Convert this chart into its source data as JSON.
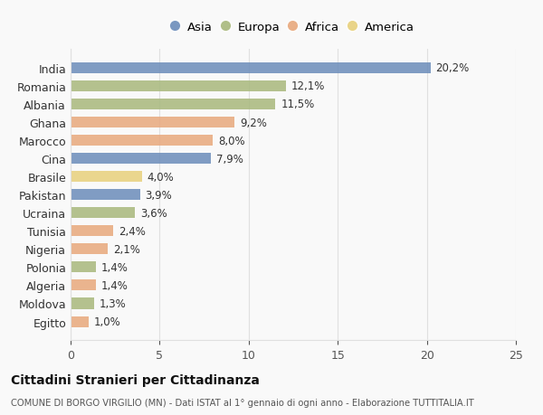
{
  "countries": [
    "India",
    "Romania",
    "Albania",
    "Ghana",
    "Marocco",
    "Cina",
    "Brasile",
    "Pakistan",
    "Ucraina",
    "Tunisia",
    "Nigeria",
    "Polonia",
    "Algeria",
    "Moldova",
    "Egitto"
  ],
  "values": [
    20.2,
    12.1,
    11.5,
    9.2,
    8.0,
    7.9,
    4.0,
    3.9,
    3.6,
    2.4,
    2.1,
    1.4,
    1.4,
    1.3,
    1.0
  ],
  "labels": [
    "20,2%",
    "12,1%",
    "11,5%",
    "9,2%",
    "8,0%",
    "7,9%",
    "4,0%",
    "3,9%",
    "3,6%",
    "2,4%",
    "2,1%",
    "1,4%",
    "1,4%",
    "1,3%",
    "1,0%"
  ],
  "continents": [
    "Asia",
    "Europa",
    "Europa",
    "Africa",
    "Africa",
    "Asia",
    "America",
    "Asia",
    "Europa",
    "Africa",
    "Africa",
    "Europa",
    "Africa",
    "Europa",
    "Africa"
  ],
  "continent_colors": {
    "Asia": "#6b8cba",
    "Europa": "#a8b87c",
    "Africa": "#e8a87c",
    "America": "#e8d07c"
  },
  "legend_order": [
    "Asia",
    "Europa",
    "Africa",
    "America"
  ],
  "title": "Cittadini Stranieri per Cittadinanza",
  "subtitle": "COMUNE DI BORGO VIRGILIO (MN) - Dati ISTAT al 1° gennaio di ogni anno - Elaborazione TUTTITALIA.IT",
  "xlim": [
    0,
    25
  ],
  "xticks": [
    0,
    5,
    10,
    15,
    20,
    25
  ],
  "background_color": "#f9f9f9",
  "grid_color": "#e0e0e0"
}
